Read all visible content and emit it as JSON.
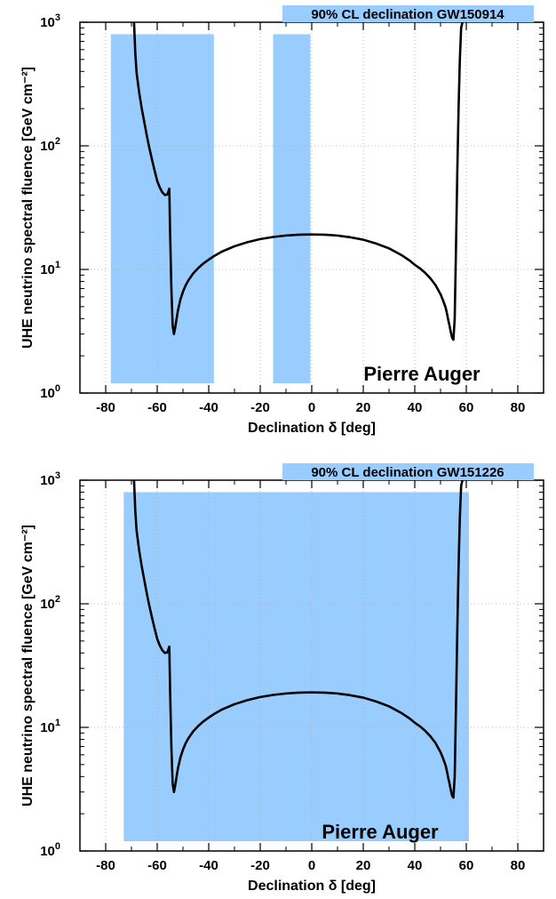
{
  "chart_data": [
    {
      "type": "line",
      "legend": "90% CL declination GW150914",
      "annotation": "Pierre Auger",
      "xlabel": "Declination δ [deg]",
      "ylabel": "UHE neutrino spectral fluence [GeV cm⁻²]",
      "xlim": [
        -90,
        90
      ],
      "ylim": [
        1,
        1000
      ],
      "yscale": "log",
      "grid": true,
      "legend_placement": "top-right",
      "xticks": [
        -80,
        -60,
        -40,
        -20,
        0,
        20,
        40,
        60,
        80
      ],
      "yticks": [
        {
          "value": 1,
          "base": "10",
          "exp": "0"
        },
        {
          "value": 10,
          "base": "10",
          "exp": "1"
        },
        {
          "value": 100,
          "base": "10",
          "exp": "2"
        },
        {
          "value": 1000,
          "base": "10",
          "exp": "3"
        }
      ],
      "shaded_regions": [
        {
          "x": [
            -78,
            -38
          ],
          "y": [
            1.2,
            800
          ]
        },
        {
          "x": [
            -15,
            -0.5
          ],
          "y": [
            1.2,
            800
          ]
        }
      ],
      "colors": {
        "region": "#99ccff",
        "curve": "#000000",
        "grid": "#aaaaaa"
      },
      "series": [
        {
          "x": [
            -69,
            -68.5,
            -68,
            -67,
            -66,
            -65,
            -64,
            -63,
            -62,
            -61,
            -60,
            -59,
            -58,
            -57,
            -56,
            -55.3,
            -55,
            -54.5,
            -54,
            -53.5,
            -53,
            -52,
            -51,
            -50,
            -49,
            -48,
            -46,
            -44,
            -42,
            -40,
            -38,
            -35,
            -30,
            -25,
            -20,
            -15,
            -10,
            -5,
            0,
            5,
            10,
            15,
            20,
            25,
            30,
            35,
            38,
            40,
            42,
            44,
            46,
            48,
            50,
            51,
            52,
            52.5,
            53,
            53.5,
            54,
            54.5,
            55,
            55.5,
            56,
            56.5,
            57,
            57.5,
            58,
            58.5
          ],
          "y": [
            1000,
            560,
            390,
            270,
            200,
            155,
            120,
            95,
            77,
            63,
            52,
            46,
            42,
            40,
            40.5,
            45,
            20,
            7,
            3.5,
            3.0,
            3.4,
            4.6,
            5.7,
            6.6,
            7.4,
            8.1,
            9.3,
            10.3,
            11.2,
            12.0,
            12.8,
            13.9,
            15.4,
            16.6,
            17.6,
            18.3,
            18.8,
            19.1,
            19.2,
            19.1,
            18.8,
            18.2,
            17.4,
            16.2,
            14.8,
            13.0,
            11.8,
            10.9,
            10.2,
            9.4,
            8.5,
            7.5,
            6.3,
            5.6,
            4.9,
            4.4,
            3.9,
            3.5,
            3.1,
            2.8,
            2.7,
            4.0,
            15,
            60,
            200,
            500,
            900,
            1000
          ]
        }
      ]
    },
    {
      "type": "line",
      "legend": "90% CL declination GW151226",
      "annotation": "Pierre Auger",
      "xlabel": "Declination δ [deg]",
      "ylabel": "UHE neutrino spectral fluence [GeV cm⁻²]",
      "xlim": [
        -90,
        90
      ],
      "ylim": [
        1,
        1000
      ],
      "yscale": "log",
      "grid": true,
      "legend_placement": "top-right",
      "xticks": [
        -80,
        -60,
        -40,
        -20,
        0,
        20,
        40,
        60,
        80
      ],
      "yticks": [
        {
          "value": 1,
          "base": "10",
          "exp": "0"
        },
        {
          "value": 10,
          "base": "10",
          "exp": "1"
        },
        {
          "value": 100,
          "base": "10",
          "exp": "2"
        },
        {
          "value": 1000,
          "base": "10",
          "exp": "3"
        }
      ],
      "shaded_regions": [
        {
          "x": [
            -73,
            61
          ],
          "y": [
            1.2,
            800
          ]
        }
      ],
      "colors": {
        "region": "#99ccff",
        "curve": "#000000",
        "grid": "#aaaaaa"
      },
      "series": [
        {
          "x": [
            -69,
            -68.5,
            -68,
            -67,
            -66,
            -65,
            -64,
            -63,
            -62,
            -61,
            -60,
            -59,
            -58,
            -57,
            -56,
            -55.3,
            -55,
            -54.5,
            -54,
            -53.5,
            -53,
            -52,
            -51,
            -50,
            -49,
            -48,
            -46,
            -44,
            -42,
            -40,
            -38,
            -35,
            -30,
            -25,
            -20,
            -15,
            -10,
            -5,
            0,
            5,
            10,
            15,
            20,
            25,
            30,
            35,
            38,
            40,
            42,
            44,
            46,
            48,
            50,
            51,
            52,
            52.5,
            53,
            53.5,
            54,
            54.5,
            55,
            55.5,
            56,
            56.5,
            57,
            57.5,
            58,
            58.5
          ],
          "y": [
            1000,
            560,
            390,
            270,
            200,
            155,
            120,
            95,
            77,
            63,
            52,
            46,
            42,
            40,
            40.5,
            45,
            20,
            7,
            3.5,
            3.0,
            3.4,
            4.6,
            5.7,
            6.6,
            7.4,
            8.1,
            9.3,
            10.3,
            11.2,
            12.0,
            12.8,
            13.9,
            15.4,
            16.6,
            17.6,
            18.3,
            18.8,
            19.1,
            19.2,
            19.1,
            18.8,
            18.2,
            17.4,
            16.2,
            14.8,
            13.0,
            11.8,
            10.9,
            10.2,
            9.4,
            8.5,
            7.5,
            6.3,
            5.6,
            4.9,
            4.4,
            3.9,
            3.5,
            3.1,
            2.8,
            2.7,
            4.0,
            15,
            60,
            200,
            500,
            900,
            1000
          ]
        }
      ]
    }
  ]
}
